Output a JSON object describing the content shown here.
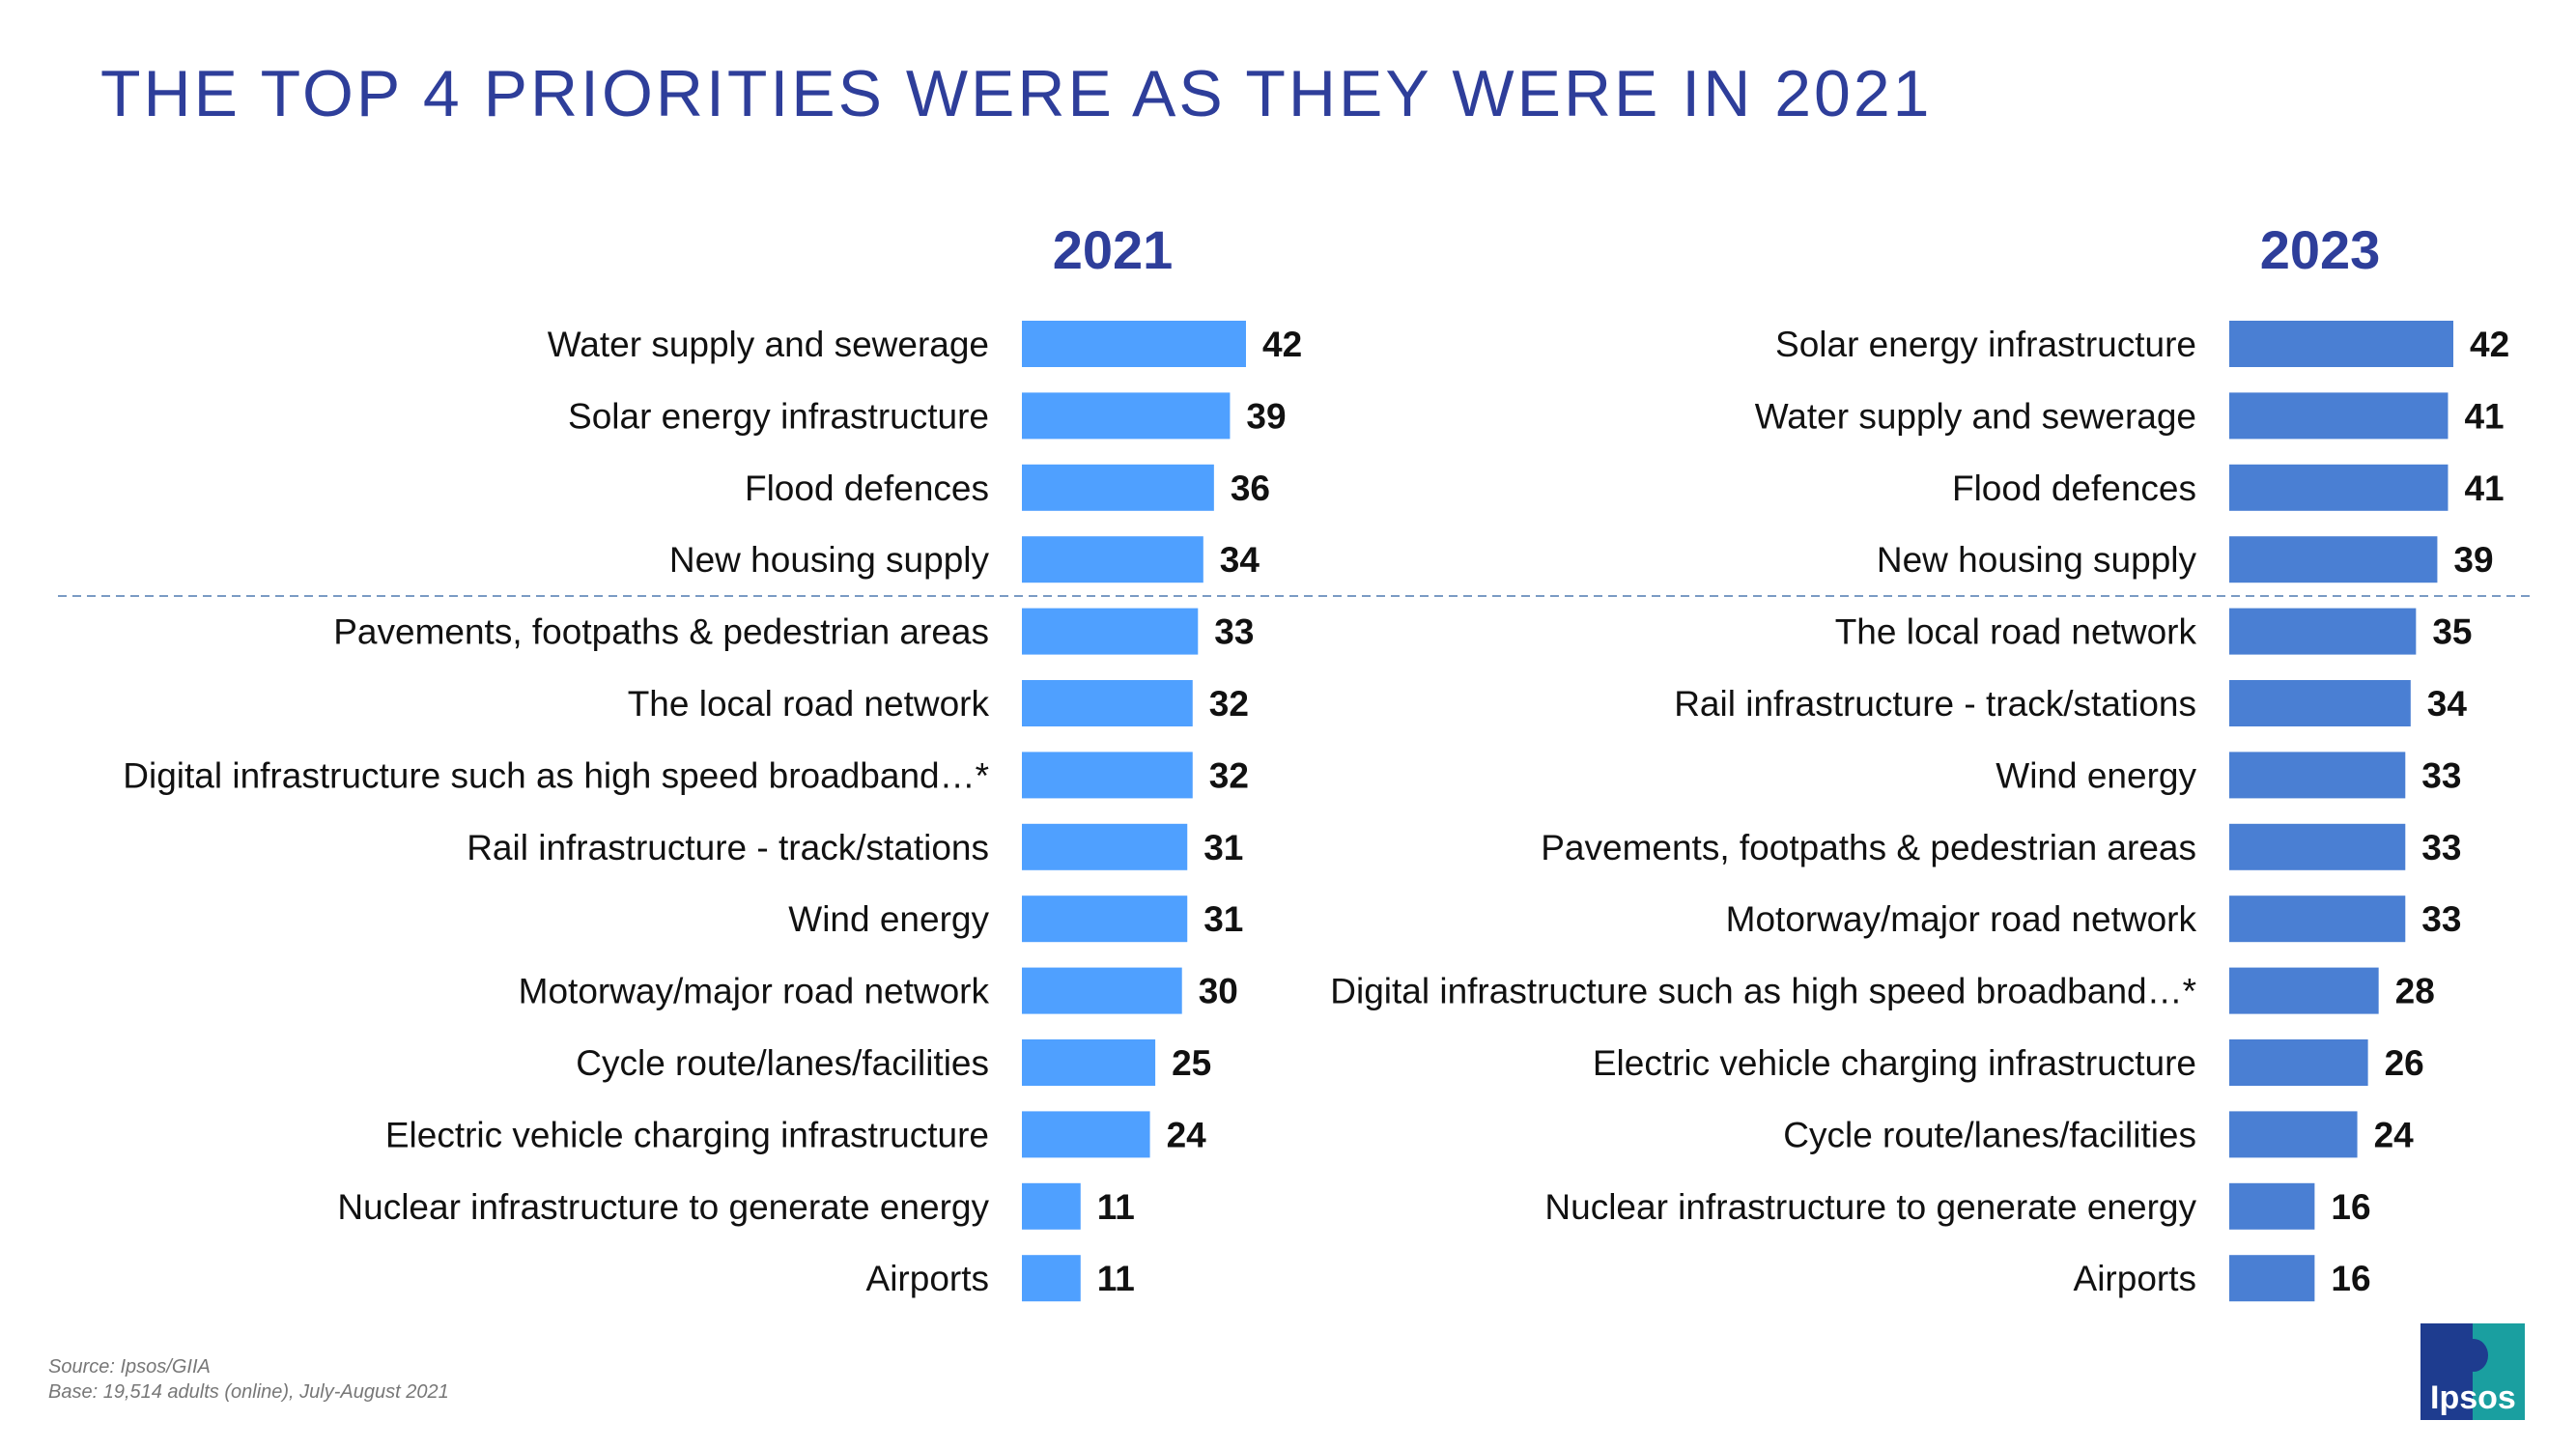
{
  "title": "THE TOP 4 PRIORITIES WERE AS THEY WERE IN 2021",
  "footer": {
    "source": "Source: Ipsos/GIIA",
    "base": "Base: 19,514 adults (online), July-August 2021"
  },
  "logo_text": "Ipsos",
  "colors": {
    "title": "#2E3E9A",
    "bar_2021": "#4FA0FF",
    "bar_2023": "#4A7FD3",
    "divider": "#7A9BC4"
  },
  "chart_data": [
    {
      "type": "bar",
      "orientation": "horizontal",
      "title": "2021",
      "xlim": [
        0,
        42
      ],
      "categories": [
        "Water supply and sewerage",
        "Solar energy infrastructure",
        "Flood defences",
        "New housing supply",
        "Pavements, footpaths & pedestrian areas",
        "The local road network",
        "Digital infrastructure such as high speed broadband…*",
        "Rail infrastructure - track/stations",
        "Wind energy",
        "Motorway/major road network",
        "Cycle route/lanes/facilities",
        "Electric vehicle charging infrastructure",
        "Nuclear infrastructure to generate energy",
        "Airports"
      ],
      "values": [
        42,
        39,
        36,
        34,
        33,
        32,
        32,
        31,
        31,
        30,
        25,
        24,
        11,
        11
      ]
    },
    {
      "type": "bar",
      "orientation": "horizontal",
      "title": "2023",
      "xlim": [
        0,
        42
      ],
      "categories": [
        "Solar energy infrastructure",
        "Water supply and sewerage",
        "Flood defences",
        "New housing supply",
        "The local road network",
        "Rail infrastructure - track/stations",
        "Wind energy",
        "Pavements, footpaths & pedestrian areas",
        "Motorway/major road network",
        "Digital infrastructure such as high speed broadband…*",
        "Electric vehicle charging infrastructure",
        "Cycle route/lanes/facilities",
        "Nuclear infrastructure to generate energy",
        "Airports"
      ],
      "values": [
        42,
        41,
        41,
        39,
        35,
        34,
        33,
        33,
        33,
        28,
        26,
        24,
        16,
        16
      ]
    }
  ]
}
